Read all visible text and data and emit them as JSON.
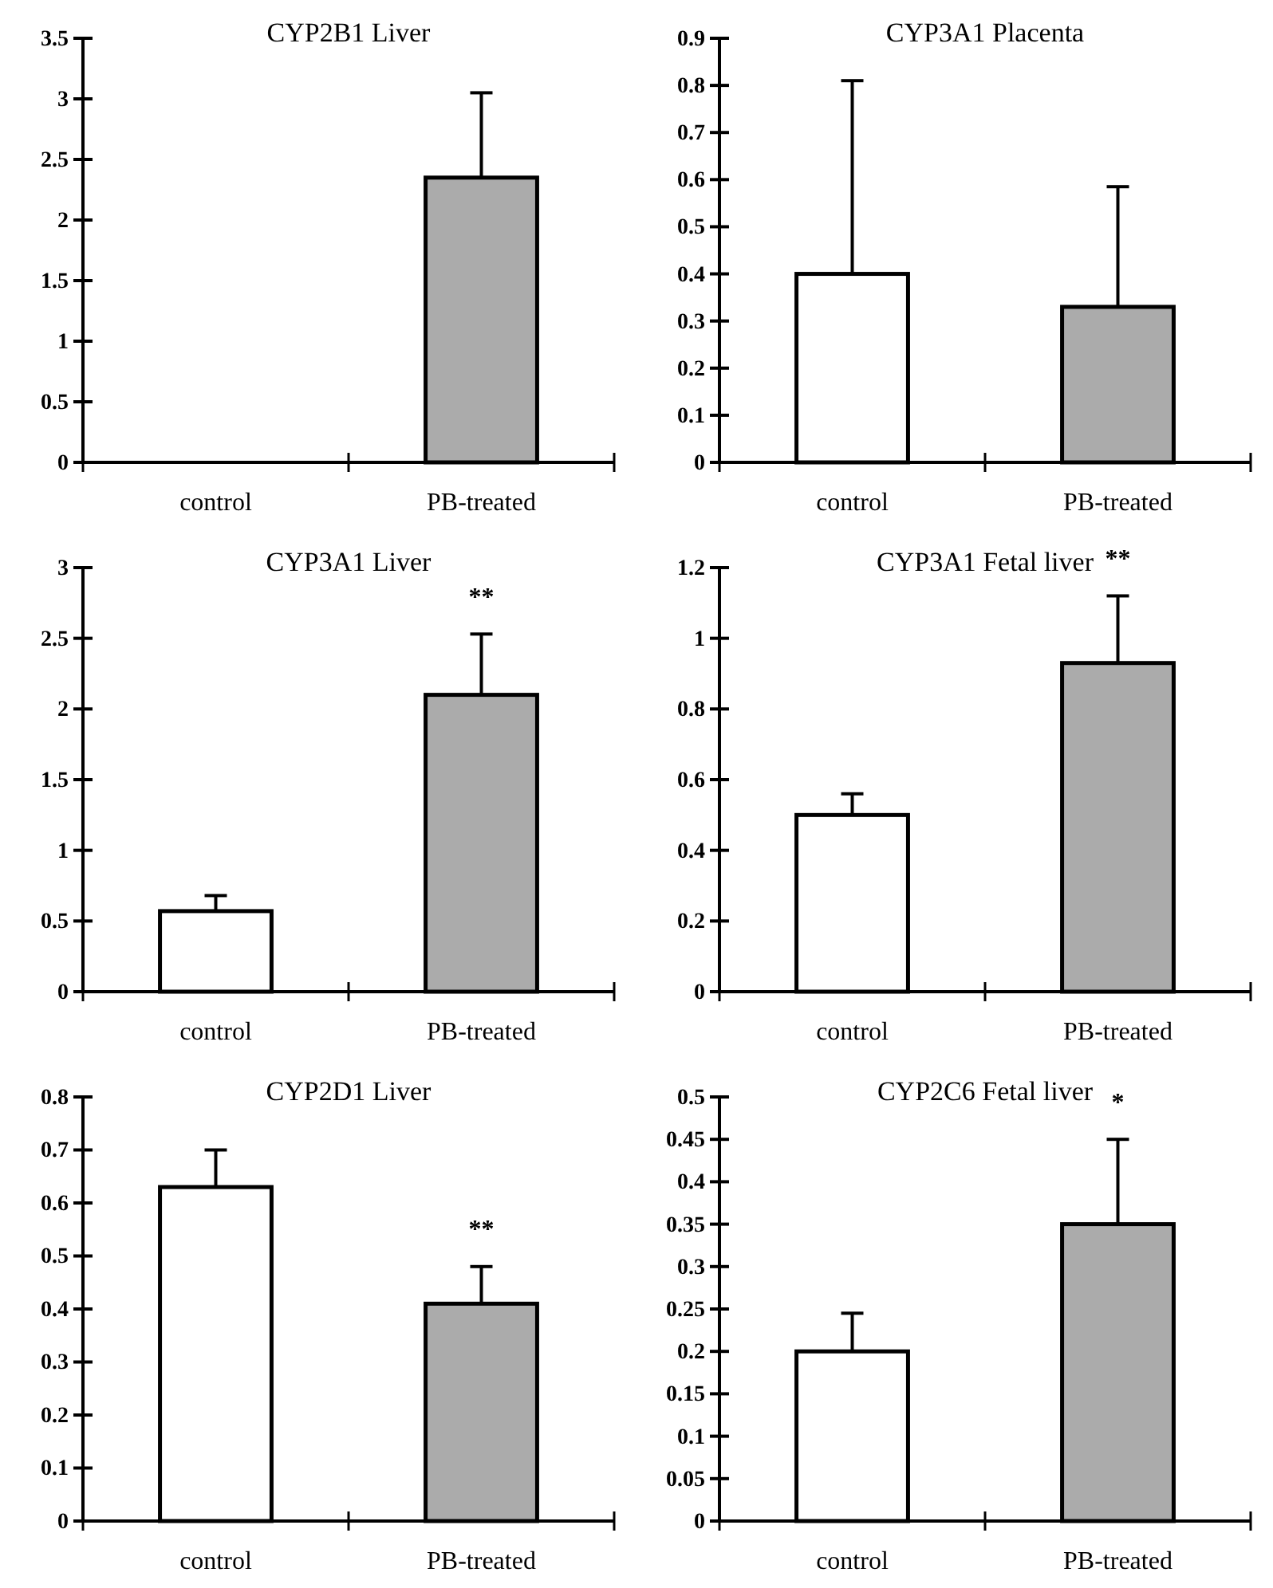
{
  "chart_data": [
    {
      "type": "bar",
      "title": "CYP2B1 Liver",
      "categories": [
        "control",
        "PB-treated"
      ],
      "values": [
        0,
        2.35
      ],
      "errors": [
        null,
        [
          2.35,
          3.05
        ]
      ],
      "colors": [
        "#ffffff",
        "#ababab"
      ],
      "ylim": [
        0,
        3.5
      ],
      "yticks": [
        0,
        0.5,
        1,
        1.5,
        2,
        2.5,
        3,
        3.5
      ]
    },
    {
      "type": "bar",
      "title": "CYP3A1 Placenta",
      "categories": [
        "control",
        "PB-treated"
      ],
      "values": [
        0.4,
        0.33
      ],
      "errors": [
        [
          0.4,
          0.81
        ],
        [
          0.33,
          0.585
        ]
      ],
      "colors": [
        "#ffffff",
        "#ababab"
      ],
      "ylim": [
        0,
        0.9
      ],
      "yticks": [
        0,
        0.1,
        0.2,
        0.3,
        0.4,
        0.5,
        0.6,
        0.7,
        0.8,
        0.9
      ]
    },
    {
      "type": "bar",
      "title": "CYP3A1 Liver",
      "categories": [
        "control",
        "PB-treated"
      ],
      "values": [
        0.57,
        2.1
      ],
      "errors": [
        [
          0.57,
          0.68
        ],
        [
          2.1,
          2.53
        ]
      ],
      "colors": [
        "#ffffff",
        "#ababab"
      ],
      "ylim": [
        0,
        3
      ],
      "yticks": [
        0,
        0.5,
        1,
        1.5,
        2,
        2.5,
        3
      ],
      "annotations": [
        "**"
      ]
    },
    {
      "type": "bar",
      "title": "CYP3A1 Fetal liver",
      "categories": [
        "control",
        "PB-treated"
      ],
      "values": [
        0.5,
        0.93
      ],
      "errors": [
        [
          0.5,
          0.56
        ],
        [
          0.93,
          1.12
        ]
      ],
      "colors": [
        "#ffffff",
        "#ababab"
      ],
      "ylim": [
        0,
        1.2
      ],
      "yticks": [
        0,
        0.2,
        0.4,
        0.6,
        0.8,
        1,
        1.2
      ],
      "annotations": [
        "**"
      ]
    },
    {
      "type": "bar",
      "title": "CYP2D1 Liver",
      "categories": [
        "control",
        "PB-treated"
      ],
      "values": [
        0.63,
        0.41
      ],
      "errors": [
        [
          0.63,
          0.7
        ],
        [
          0.41,
          0.48
        ]
      ],
      "colors": [
        "#ffffff",
        "#ababab"
      ],
      "ylim": [
        0,
        0.8
      ],
      "yticks": [
        0,
        0.1,
        0.2,
        0.3,
        0.4,
        0.5,
        0.6,
        0.7,
        0.8
      ],
      "annotations": [
        "**"
      ]
    },
    {
      "type": "bar",
      "title": "CYP2C6 Fetal liver",
      "categories": [
        "control",
        "PB-treated"
      ],
      "values": [
        0.2,
        0.35
      ],
      "errors": [
        [
          0.2,
          0.245
        ],
        [
          0.35,
          0.45
        ]
      ],
      "colors": [
        "#ffffff",
        "#ababab"
      ],
      "ylim": [
        0,
        0.5
      ],
      "yticks": [
        0,
        0.05,
        0.1,
        0.15,
        0.2,
        0.25,
        0.3,
        0.35,
        0.4,
        0.45,
        0.5
      ],
      "annotations": [
        "*"
      ]
    }
  ]
}
